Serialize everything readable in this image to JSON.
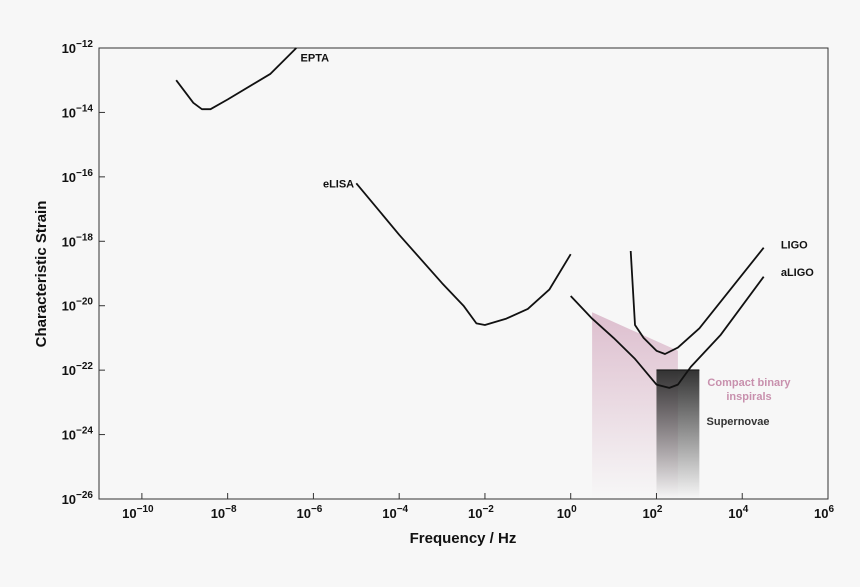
{
  "chart_data": {
    "type": "line",
    "xlabel": "Frequency / Hz",
    "ylabel": "Characteristic Strain",
    "xscale": "log",
    "yscale": "log",
    "xlim_exp": [
      -11,
      6
    ],
    "ylim_exp": [
      -26,
      -12
    ],
    "x_ticks": [
      {
        "base": "10",
        "exp": "−10",
        "value_exp": -10
      },
      {
        "base": "10",
        "exp": "−8",
        "value_exp": -8
      },
      {
        "base": "10",
        "exp": "−6",
        "value_exp": -6
      },
      {
        "base": "10",
        "exp": "−4",
        "value_exp": -4
      },
      {
        "base": "10",
        "exp": "−2",
        "value_exp": -2
      },
      {
        "base": "10",
        "exp": "0",
        "value_exp": 0
      },
      {
        "base": "10",
        "exp": "2",
        "value_exp": 2
      },
      {
        "base": "10",
        "exp": "4",
        "value_exp": 4
      },
      {
        "base": "10",
        "exp": "6",
        "value_exp": 6
      }
    ],
    "y_ticks": [
      {
        "base": "10",
        "exp": "−12",
        "value_exp": -12
      },
      {
        "base": "10",
        "exp": "−14",
        "value_exp": -14
      },
      {
        "base": "10",
        "exp": "−16",
        "value_exp": -16
      },
      {
        "base": "10",
        "exp": "−18",
        "value_exp": -18
      },
      {
        "base": "10",
        "exp": "−20",
        "value_exp": -20
      },
      {
        "base": "10",
        "exp": "−22",
        "value_exp": -22
      },
      {
        "base": "10",
        "exp": "−24",
        "value_exp": -24
      },
      {
        "base": "10",
        "exp": "−26",
        "value_exp": -26
      }
    ],
    "grid": false,
    "legend": "none",
    "series": [
      {
        "name": "EPTA",
        "color": "#111111",
        "points": [
          [
            -9.2,
            -13.0
          ],
          [
            -8.8,
            -13.7
          ],
          [
            -8.6,
            -13.9
          ],
          [
            -8.4,
            -13.9
          ],
          [
            -8.0,
            -13.6
          ],
          [
            -7.0,
            -12.8
          ],
          [
            -6.4,
            -12.0
          ]
        ]
      },
      {
        "name": "eLISA",
        "color": "#111111",
        "points": [
          [
            -5.0,
            -16.2
          ],
          [
            -4.0,
            -17.8
          ],
          [
            -3.0,
            -19.3
          ],
          [
            -2.5,
            -20.0
          ],
          [
            -2.2,
            -20.55
          ],
          [
            -2.0,
            -20.6
          ],
          [
            -1.5,
            -20.4
          ],
          [
            -1.0,
            -20.1
          ],
          [
            -0.5,
            -19.5
          ],
          [
            0.0,
            -18.4
          ]
        ]
      },
      {
        "name": "LIGO",
        "color": "#111111",
        "points": [
          [
            1.4,
            -18.3
          ],
          [
            1.5,
            -20.6
          ],
          [
            1.7,
            -21.0
          ],
          [
            2.0,
            -21.4
          ],
          [
            2.2,
            -21.5
          ],
          [
            2.5,
            -21.3
          ],
          [
            3.0,
            -20.7
          ],
          [
            4.5,
            -18.2
          ]
        ]
      },
      {
        "name": "aLIGO",
        "color": "#111111",
        "points": [
          [
            0.0,
            -19.7
          ],
          [
            0.5,
            -20.4
          ],
          [
            1.0,
            -21.0
          ],
          [
            1.5,
            -21.65
          ],
          [
            2.0,
            -22.45
          ],
          [
            2.3,
            -22.55
          ],
          [
            2.5,
            -22.45
          ],
          [
            2.8,
            -21.9
          ],
          [
            3.5,
            -20.9
          ],
          [
            4.5,
            -19.1
          ]
        ]
      }
    ],
    "regions": [
      {
        "name": "Compact binary inspirals",
        "label_lines": [
          "Compact binary",
          "inspirals"
        ],
        "color": "#c890ad",
        "polygon": [
          [
            0.5,
            -20.2
          ],
          [
            2.5,
            -21.4
          ],
          [
            2.5,
            -26
          ],
          [
            0.5,
            -26
          ]
        ]
      },
      {
        "name": "Supernovae",
        "label_lines": [
          "Supernovae"
        ],
        "color": "#333333",
        "x_range": [
          2.0,
          3.0
        ],
        "y_top": -22.0,
        "y_bottom": -26
      }
    ],
    "annotations": [
      {
        "text": "EPTA",
        "x": -6.3,
        "y": -12.3,
        "anchor": "start"
      },
      {
        "text": "eLISA",
        "x": -5.05,
        "y": -16.2,
        "anchor": "end"
      },
      {
        "text": "LIGO",
        "x": 4.9,
        "y": -18.1,
        "anchor": "start"
      },
      {
        "text": "aLIGO",
        "x": 4.9,
        "y": -18.95,
        "anchor": "start"
      }
    ]
  }
}
